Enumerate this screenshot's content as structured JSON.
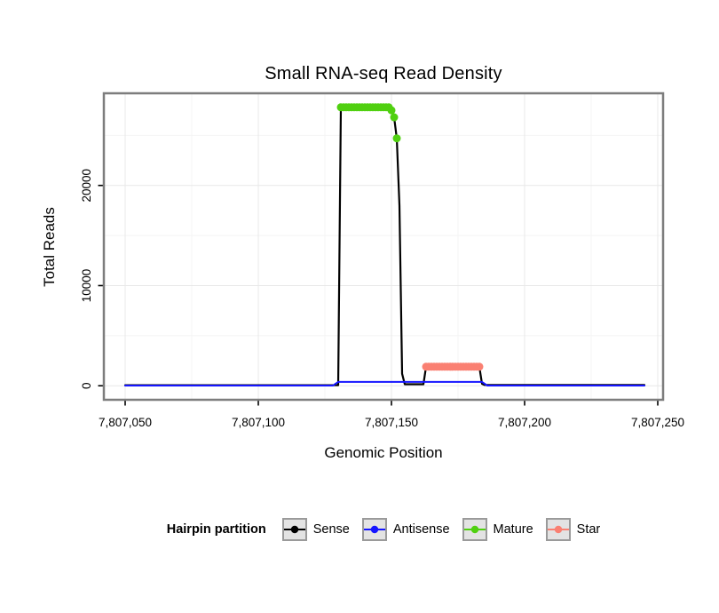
{
  "legend": {
    "title": "Hairpin partition",
    "items": [
      {
        "label": "Sense",
        "color": "#000000"
      },
      {
        "label": "Antisense",
        "color": "#1515ff"
      },
      {
        "label": "Mature",
        "color": "#50d010"
      },
      {
        "label": "Star",
        "color": "#fa8072"
      }
    ]
  },
  "chart_data": {
    "type": "line",
    "title": "Small RNA-seq Read Density",
    "xlabel": "Genomic Position",
    "ylabel": "Total Reads",
    "xlim": [
      7807042,
      7807252
    ],
    "ylim": [
      -1400,
      29200
    ],
    "grid": true,
    "legend_position": "bottom",
    "xticks": [
      {
        "value": 7807050,
        "label": "7,807,050"
      },
      {
        "value": 7807100,
        "label": "7,807,100"
      },
      {
        "value": 7807150,
        "label": "7,807,150"
      },
      {
        "value": 7807200,
        "label": "7,807,200"
      },
      {
        "value": 7807250,
        "label": "7,807,250"
      }
    ],
    "yticks": [
      {
        "value": 0,
        "label": "0"
      },
      {
        "value": 10000,
        "label": "10000"
      },
      {
        "value": 20000,
        "label": "20000"
      }
    ],
    "series": [
      {
        "name": "Sense",
        "type": "line",
        "color": "#000000",
        "width": 2.2,
        "points": [
          [
            7807050,
            60
          ],
          [
            7807130,
            60
          ],
          [
            7807131,
            27800
          ],
          [
            7807149,
            27800
          ],
          [
            7807150,
            27500
          ],
          [
            7807151,
            26800
          ],
          [
            7807152,
            24700
          ],
          [
            7807153,
            18000
          ],
          [
            7807154,
            1200
          ],
          [
            7807155,
            150
          ],
          [
            7807162,
            150
          ],
          [
            7807163,
            1900
          ],
          [
            7807183,
            1900
          ],
          [
            7807184,
            200
          ],
          [
            7807185,
            80
          ],
          [
            7807245,
            80
          ]
        ]
      },
      {
        "name": "Antisense",
        "type": "line",
        "color": "#1515ff",
        "width": 2,
        "points": [
          [
            7807050,
            20
          ],
          [
            7807128,
            20
          ],
          [
            7807130,
            380
          ],
          [
            7807184,
            380
          ],
          [
            7807186,
            20
          ],
          [
            7807245,
            20
          ]
        ]
      },
      {
        "name": "Mature",
        "type": "points",
        "color": "#50d010",
        "marker_size": 4.5,
        "points": [
          [
            7807131,
            27800
          ],
          [
            7807132,
            27800
          ],
          [
            7807133,
            27800
          ],
          [
            7807134,
            27800
          ],
          [
            7807135,
            27800
          ],
          [
            7807136,
            27800
          ],
          [
            7807137,
            27800
          ],
          [
            7807138,
            27800
          ],
          [
            7807139,
            27800
          ],
          [
            7807140,
            27800
          ],
          [
            7807141,
            27800
          ],
          [
            7807142,
            27800
          ],
          [
            7807143,
            27800
          ],
          [
            7807144,
            27800
          ],
          [
            7807145,
            27800
          ],
          [
            7807146,
            27800
          ],
          [
            7807147,
            27800
          ],
          [
            7807148,
            27800
          ],
          [
            7807149,
            27800
          ],
          [
            7807150,
            27500
          ],
          [
            7807151,
            26800
          ],
          [
            7807152,
            24700
          ]
        ]
      },
      {
        "name": "Star",
        "type": "points",
        "color": "#fa8072",
        "marker_size": 4.5,
        "points": [
          [
            7807163,
            1900
          ],
          [
            7807164,
            1900
          ],
          [
            7807165,
            1900
          ],
          [
            7807166,
            1900
          ],
          [
            7807167,
            1900
          ],
          [
            7807168,
            1900
          ],
          [
            7807169,
            1900
          ],
          [
            7807170,
            1900
          ],
          [
            7807171,
            1900
          ],
          [
            7807172,
            1900
          ],
          [
            7807173,
            1900
          ],
          [
            7807174,
            1900
          ],
          [
            7807175,
            1900
          ],
          [
            7807176,
            1900
          ],
          [
            7807177,
            1900
          ],
          [
            7807178,
            1900
          ],
          [
            7807179,
            1900
          ],
          [
            7807180,
            1900
          ],
          [
            7807181,
            1900
          ],
          [
            7807182,
            1900
          ],
          [
            7807183,
            1900
          ]
        ]
      }
    ]
  }
}
